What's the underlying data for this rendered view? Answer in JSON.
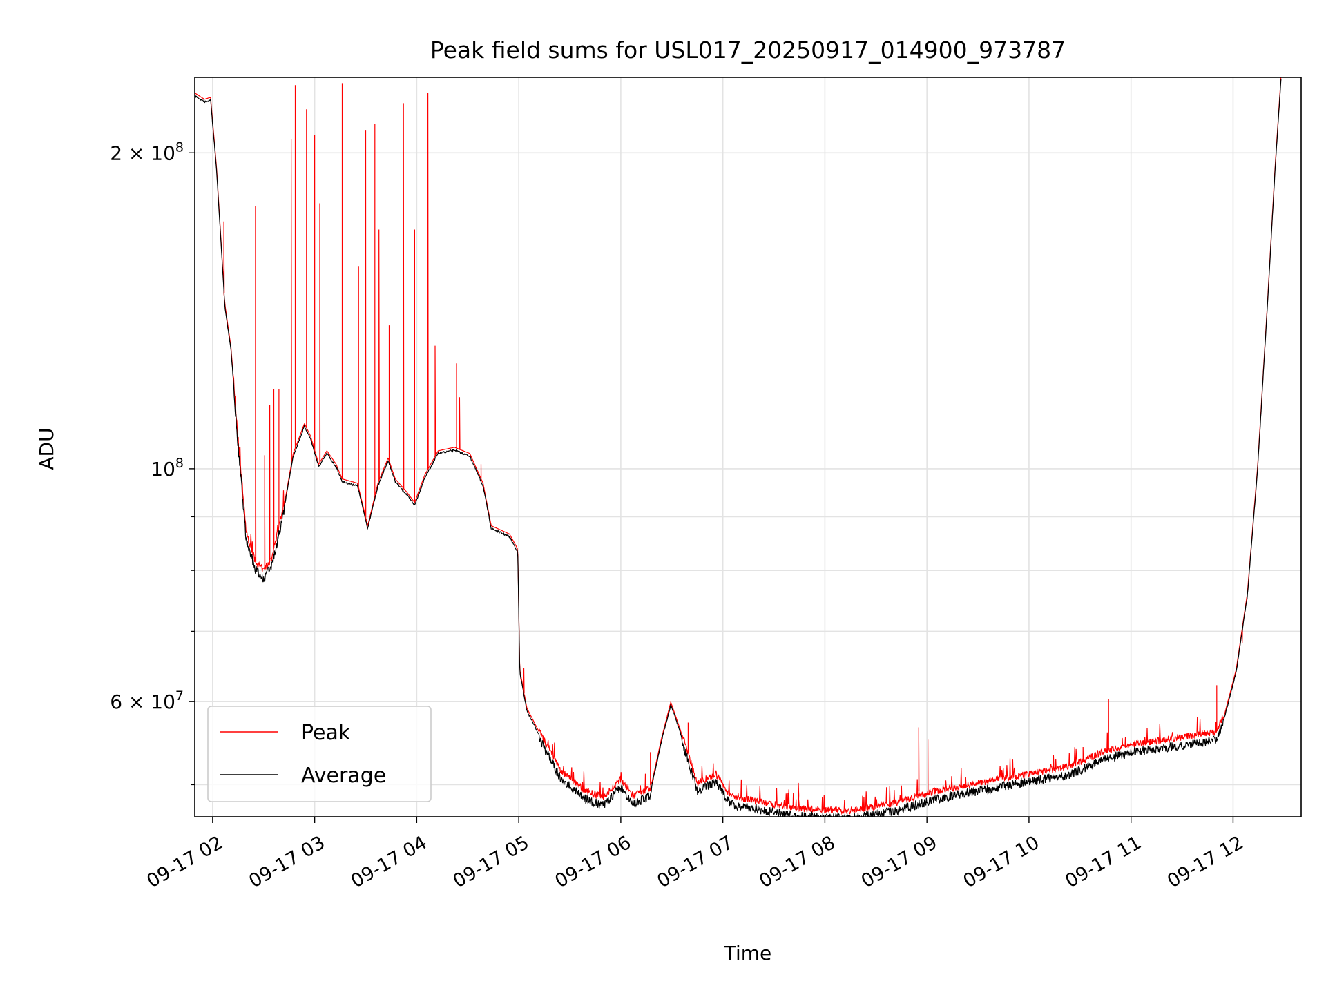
{
  "chart_data": {
    "type": "line",
    "title": "Peak field sums for USL017_20250917_014900_973787",
    "xlabel": "Time",
    "ylabel": "ADU",
    "x_units": "hours since 09-17 00:00",
    "xlim": [
      1.825,
      12.667
    ],
    "ylim": [
      46600000,
      236000000
    ],
    "yscale": "log",
    "grid": true,
    "legend_placement": "lower-left",
    "x_ticks": [
      {
        "value": 2,
        "label": "09-17 02"
      },
      {
        "value": 3,
        "label": "09-17 03"
      },
      {
        "value": 4,
        "label": "09-17 04"
      },
      {
        "value": 5,
        "label": "09-17 05"
      },
      {
        "value": 6,
        "label": "09-17 06"
      },
      {
        "value": 7,
        "label": "09-17 07"
      },
      {
        "value": 8,
        "label": "09-17 08"
      },
      {
        "value": 9,
        "label": "09-17 09"
      },
      {
        "value": 10,
        "label": "09-17 10"
      },
      {
        "value": 11,
        "label": "09-17 11"
      },
      {
        "value": 12,
        "label": "09-17 12"
      }
    ],
    "y_major_ticks": [
      {
        "value": 200000000,
        "mantissa": "2 × 10",
        "exp": "8"
      },
      {
        "value": 100000000,
        "mantissa": "10",
        "exp": "8"
      },
      {
        "value": 60000000,
        "mantissa": "6 × 10",
        "exp": "7"
      }
    ],
    "y_minor_ticks": [
      50000000,
      70000000,
      80000000,
      90000000
    ],
    "series": [
      {
        "name": "Peak",
        "color": "#ff0000",
        "spikes": [
          [
            2.11,
            172000000.0
          ],
          [
            2.22,
            115000000.0
          ],
          [
            2.42,
            178000000.0
          ],
          [
            2.51,
            103000000.0
          ],
          [
            2.56,
            115000000.0
          ],
          [
            2.6,
            119000000.0
          ],
          [
            2.65,
            119000000.0
          ],
          [
            2.77,
            206000000.0
          ],
          [
            2.81,
            232000000.0
          ],
          [
            2.92,
            220000000.0
          ],
          [
            3.0,
            208000000.0
          ],
          [
            3.05,
            179000000.0
          ],
          [
            3.27,
            233000000.0
          ],
          [
            3.43,
            156000000.0
          ],
          [
            3.5,
            210000000.0
          ],
          [
            3.59,
            213000000.0
          ],
          [
            3.63,
            169000000.0
          ],
          [
            3.73,
            137000000.0
          ],
          [
            3.87,
            223000000.0
          ],
          [
            3.98,
            169000000.0
          ],
          [
            4.11,
            228000000.0
          ],
          [
            4.18,
            131000000.0
          ],
          [
            4.39,
            126000000.0
          ],
          [
            4.42,
            117000000.0
          ],
          [
            4.63,
            101000000.0
          ],
          [
            5.05,
            64600000.0
          ],
          [
            6.29,
            53700000.0
          ],
          [
            6.66,
            57300000.0
          ],
          [
            7.74,
            50200000.0
          ],
          [
            8.92,
            56700000.0
          ],
          [
            9.01,
            55200000.0
          ],
          [
            9.38,
            50800000.0
          ],
          [
            10.53,
            54300000.0
          ],
          [
            10.78,
            60300000.0
          ],
          [
            11.21,
            55300000.0
          ],
          [
            11.84,
            62200000.0
          ],
          [
            12.09,
            68200000.0
          ]
        ]
      },
      {
        "name": "Average",
        "color": "#000000",
        "points": [
          [
            1.83,
            227000000.0
          ],
          [
            1.92,
            224000000.0
          ],
          [
            1.98,
            225000000.0
          ],
          [
            2.04,
            192000000.0
          ],
          [
            2.12,
            143000000.0
          ],
          [
            2.18,
            130000000.0
          ],
          [
            2.25,
            106000000.0
          ],
          [
            2.33,
            86300000.0
          ],
          [
            2.42,
            80900000.0
          ],
          [
            2.5,
            79400000.0
          ],
          [
            2.58,
            81600000.0
          ],
          [
            2.71,
            93000000.0
          ],
          [
            2.79,
            103000000.0
          ],
          [
            2.9,
            110000000.0
          ],
          [
            2.96,
            107000000.0
          ],
          [
            3.04,
            100600000.0
          ],
          [
            3.12,
            103600000.0
          ],
          [
            3.21,
            100600000.0
          ],
          [
            3.27,
            97400000.0
          ],
          [
            3.42,
            96500000.0
          ],
          [
            3.52,
            87900000.0
          ],
          [
            3.62,
            96500000.0
          ],
          [
            3.72,
            102000000.0
          ],
          [
            3.79,
            97400000.0
          ],
          [
            3.9,
            94700000.0
          ],
          [
            3.98,
            92500000.0
          ],
          [
            4.08,
            98300000.0
          ],
          [
            4.21,
            103600000.0
          ],
          [
            4.37,
            104400000.0
          ],
          [
            4.52,
            103000000.0
          ],
          [
            4.65,
            96500000.0
          ],
          [
            4.73,
            87900000.0
          ],
          [
            4.91,
            86300000.0
          ],
          [
            4.99,
            83500000.0
          ],
          [
            5.01,
            64100000.0
          ],
          [
            5.08,
            58900000.0
          ],
          [
            5.25,
            54700000.0
          ],
          [
            5.41,
            51200000.0
          ],
          [
            5.66,
            48900000.0
          ],
          [
            5.83,
            48300000.0
          ],
          [
            6.0,
            50200000.0
          ],
          [
            6.12,
            48400000.0
          ],
          [
            6.29,
            49300000.0
          ],
          [
            6.4,
            55200000.0
          ],
          [
            6.49,
            59700000.0
          ],
          [
            6.58,
            56300000.0
          ],
          [
            6.75,
            49800000.0
          ],
          [
            6.93,
            50800000.0
          ],
          [
            7.08,
            48400000.0
          ],
          [
            7.41,
            47700000.0
          ],
          [
            7.75,
            47100000.0
          ],
          [
            8.24,
            46900000.0
          ],
          [
            8.66,
            47600000.0
          ],
          [
            9.08,
            48900000.0
          ],
          [
            9.49,
            49800000.0
          ],
          [
            9.99,
            50800000.0
          ],
          [
            10.41,
            51700000.0
          ],
          [
            10.74,
            53400000.0
          ],
          [
            10.99,
            54200000.0
          ],
          [
            11.41,
            54900000.0
          ],
          [
            11.83,
            55700000.0
          ],
          [
            11.91,
            57800000.0
          ],
          [
            12.03,
            64100000.0
          ],
          [
            12.14,
            75800000.0
          ],
          [
            12.24,
            100000000.0
          ],
          [
            12.34,
            145000000.0
          ],
          [
            12.41,
            192000000.0
          ],
          [
            12.47,
            236000000.0
          ]
        ]
      }
    ]
  }
}
